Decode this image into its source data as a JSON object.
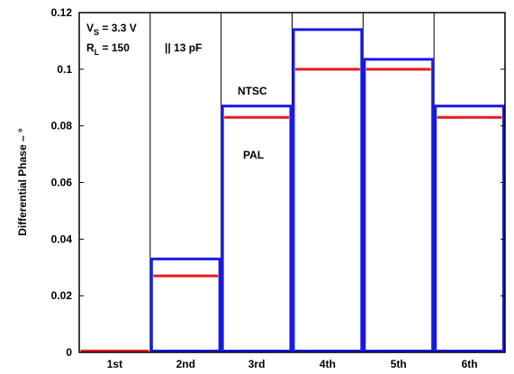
{
  "chart_data": {
    "type": "bar",
    "categories": [
      "1st",
      "2nd",
      "3rd",
      "4th",
      "5th",
      "6th"
    ],
    "series": [
      {
        "name": "NTSC",
        "values": [
          0,
          0.033,
          0.087,
          0.114,
          0.1035,
          0.087
        ],
        "color": "#1a1ae6",
        "style": "outlined-bar"
      },
      {
        "name": "PAL",
        "values": [
          0,
          0.027,
          0.083,
          0.1,
          0.1,
          0.083
        ],
        "color": "#e61a1a",
        "style": "horizontal-level"
      }
    ],
    "ylabel": "Differential Phase – °",
    "xlabel": "",
    "ylim": [
      0,
      0.12
    ],
    "yticks": [
      "0",
      "0.02",
      "0.04",
      "0.06",
      "0.08",
      "0.1",
      "0.12"
    ],
    "grid": "vertical-category-dividers",
    "annotations": {
      "vs_main": "V",
      "vs_sub": "S",
      "vs_value": " = 3.3 V",
      "rl_main": "R",
      "rl_sub": "L",
      "rl_value": " = 150",
      "rl_parallel": "|| 13 pF",
      "ntsc_label": "NTSC",
      "pal_label": "PAL"
    }
  }
}
